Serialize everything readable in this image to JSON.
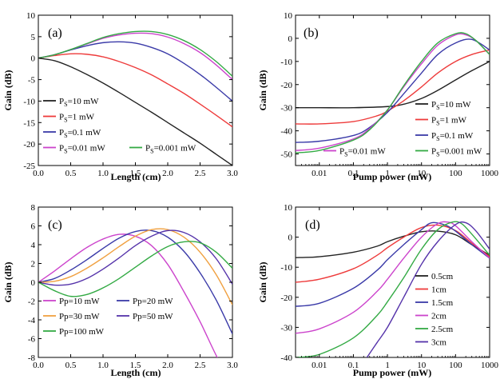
{
  "colors": {
    "black": "#222222",
    "red": "#ee3b3b",
    "blue": "#3a3aa8",
    "magenta": "#cc44cc",
    "green": "#33aa44",
    "orange": "#f0a040",
    "purple": "#5533aa"
  },
  "chart_data": [
    {
      "id": "a",
      "type": "line",
      "tag": "(a)",
      "xlabel": "Length (cm)",
      "ylabel": "Gain (dB)",
      "xscale": "linear",
      "xlim": [
        0,
        3
      ],
      "ylim": [
        -25,
        10
      ],
      "xticks": [
        0,
        0.5,
        1,
        1.5,
        2,
        2.5,
        3
      ],
      "xticklabels": [
        "0.0",
        "0.5",
        "1.0",
        "1.5",
        "2.0",
        "2.5",
        "3.0"
      ],
      "yticks": [
        -25,
        -20,
        -15,
        -10,
        -5,
        0,
        5,
        10
      ],
      "yticklabels": [
        "-25",
        "-20",
        "-15",
        "-10",
        "-5",
        "0",
        "5",
        "10"
      ],
      "legend_placement": "bottom-left",
      "series": [
        {
          "name_main": "P",
          "name_sub": "S",
          "name_rest": "=10 mW",
          "color": "#222222",
          "x": [
            0,
            0.25,
            0.5,
            0.75,
            1,
            1.25,
            1.5,
            1.75,
            2,
            2.25,
            2.5,
            2.75,
            3
          ],
          "y": [
            0,
            -0.6,
            -2,
            -3.8,
            -5.8,
            -8,
            -10.3,
            -12.6,
            -15,
            -17.4,
            -19.8,
            -22.4,
            -25
          ]
        },
        {
          "name_main": "P",
          "name_sub": "S",
          "name_rest": "=1 mW",
          "color": "#ee3b3b",
          "x": [
            0,
            0.25,
            0.5,
            0.75,
            1,
            1.25,
            1.5,
            1.75,
            2,
            2.25,
            2.5,
            2.75,
            3
          ],
          "y": [
            0,
            0.6,
            1,
            0.9,
            0.3,
            -0.8,
            -2.2,
            -3.9,
            -6,
            -8.2,
            -10.7,
            -13.3,
            -16
          ]
        },
        {
          "name_main": "P",
          "name_sub": "S",
          "name_rest": "=0.1 mW",
          "color": "#3a3aa8",
          "x": [
            0,
            0.25,
            0.5,
            0.75,
            1,
            1.25,
            1.5,
            1.75,
            2,
            2.25,
            2.5,
            2.75,
            3
          ],
          "y": [
            0,
            0.8,
            1.9,
            2.9,
            3.6,
            3.8,
            3.5,
            2.5,
            1,
            -1.2,
            -3.8,
            -6.8,
            -10
          ]
        },
        {
          "name_main": "P",
          "name_sub": "S",
          "name_rest": "=0.01 mW",
          "color": "#cc44cc",
          "x": [
            0,
            0.25,
            0.5,
            0.75,
            1,
            1.25,
            1.5,
            1.75,
            2,
            2.25,
            2.5,
            2.75,
            3
          ],
          "y": [
            0,
            0.8,
            2,
            3.3,
            4.6,
            5.4,
            5.8,
            5.7,
            4.9,
            3.4,
            1.3,
            -1.6,
            -5
          ]
        },
        {
          "name_main": "P",
          "name_sub": "S",
          "name_rest": "=0.001 mW",
          "color": "#33aa44",
          "x": [
            0,
            0.25,
            0.5,
            0.75,
            1,
            1.25,
            1.5,
            1.75,
            2,
            2.25,
            2.5,
            2.75,
            3
          ],
          "y": [
            0,
            0.8,
            2,
            3.4,
            4.8,
            5.7,
            6.2,
            6.2,
            5.5,
            4.1,
            2,
            -0.8,
            -4.2
          ]
        }
      ]
    },
    {
      "id": "b",
      "type": "line",
      "tag": "(b)",
      "xlabel": "Pump power (mW)",
      "ylabel": "Gain (dB)",
      "xscale": "log",
      "xlim": [
        0.002,
        1000
      ],
      "ylim": [
        -55,
        10
      ],
      "xticks": [
        0.01,
        0.1,
        1,
        10,
        100,
        1000
      ],
      "xticklabels": [
        "0.01",
        "0.1",
        "1",
        "10",
        "100",
        "1000"
      ],
      "yticks": [
        -50,
        -40,
        -30,
        -20,
        -10,
        0,
        10
      ],
      "yticklabels": [
        "-50",
        "-40",
        "-30",
        "-20",
        "-10",
        "0",
        "10"
      ],
      "legend_placement": "bottom-right",
      "series": [
        {
          "name_main": "P",
          "name_sub": "S",
          "name_rest": "=10 mW",
          "color": "#222222",
          "x": [
            0.002,
            0.01,
            0.1,
            1,
            3,
            10,
            30,
            100,
            300,
            1000
          ],
          "y": [
            -30,
            -30,
            -30,
            -29.5,
            -28.5,
            -26,
            -22.5,
            -18,
            -14,
            -10
          ]
        },
        {
          "name_main": "P",
          "name_sub": "S",
          "name_rest": "=1 mW",
          "color": "#ee3b3b",
          "x": [
            0.002,
            0.01,
            0.1,
            0.5,
            1,
            3,
            10,
            30,
            100,
            300,
            1000
          ],
          "y": [
            -37,
            -37,
            -36,
            -33.5,
            -31.5,
            -27,
            -21,
            -15,
            -10,
            -7,
            -5
          ]
        },
        {
          "name_main": "P",
          "name_sub": "S",
          "name_rest": "=0.1 mW",
          "color": "#3a3aa8",
          "x": [
            0.002,
            0.01,
            0.1,
            0.3,
            1,
            3,
            10,
            30,
            100,
            300,
            1000
          ],
          "y": [
            -45,
            -44.5,
            -42,
            -38.5,
            -32,
            -24,
            -15,
            -7,
            -2,
            -0.5,
            -5
          ]
        },
        {
          "name_main": "P",
          "name_sub": "S",
          "name_rest": "=0.01 mW",
          "color": "#cc44cc",
          "x": [
            0.002,
            0.01,
            0.1,
            0.3,
            1,
            3,
            10,
            30,
            100,
            200,
            400,
            1000
          ],
          "y": [
            -48.5,
            -47.5,
            -43.5,
            -39,
            -31,
            -21,
            -11,
            -3,
            1.5,
            1.5,
            -1,
            -7
          ]
        },
        {
          "name_main": "P",
          "name_sub": "S",
          "name_rest": "=0.001 mW",
          "color": "#33aa44",
          "x": [
            0.002,
            0.01,
            0.1,
            0.3,
            1,
            3,
            10,
            30,
            100,
            200,
            400,
            1000
          ],
          "y": [
            -49.5,
            -48.5,
            -44,
            -39.5,
            -31,
            -20.5,
            -10,
            -2,
            2,
            2,
            -1,
            -7
          ]
        }
      ]
    },
    {
      "id": "c",
      "type": "line",
      "tag": "(c)",
      "xlabel": "Length (cm)",
      "ylabel": "Gain (dB)",
      "xscale": "linear",
      "xlim": [
        0,
        3
      ],
      "ylim": [
        -8,
        8
      ],
      "xticks": [
        0,
        0.5,
        1,
        1.5,
        2,
        2.5,
        3
      ],
      "xticklabels": [
        "0.0",
        "0.5",
        "1.0",
        "1.5",
        "2.0",
        "2.5",
        "3.0"
      ],
      "yticks": [
        -8,
        -6,
        -4,
        -2,
        0,
        2,
        4,
        6,
        8
      ],
      "yticklabels": [
        "-8",
        "-6",
        "-4",
        "-2",
        "0",
        "2",
        "4",
        "6",
        "8"
      ],
      "legend_placement": "bottom-left",
      "series": [
        {
          "name": "Pp=10 mW",
          "color": "#cc44cc",
          "x": [
            0,
            0.25,
            0.5,
            0.75,
            1,
            1.25,
            1.5,
            1.75,
            2,
            2.25,
            2.5,
            2.75,
            3
          ],
          "y": [
            0,
            1.2,
            2.5,
            3.7,
            4.6,
            5.1,
            4.9,
            3.9,
            1.9,
            -1,
            -4.2,
            -7.8,
            -11
          ]
        },
        {
          "name": "Pp=20 mW",
          "color": "#3a3aa8",
          "x": [
            0,
            0.25,
            0.5,
            0.75,
            1,
            1.25,
            1.5,
            1.75,
            2,
            2.25,
            2.5,
            2.75,
            3
          ],
          "y": [
            0,
            0.4,
            1.3,
            2.4,
            3.6,
            4.7,
            5.4,
            5.5,
            4.8,
            3.3,
            1,
            -1.9,
            -5.5
          ]
        },
        {
          "name": "Pp=30 mW",
          "color": "#f0a040",
          "x": [
            0,
            0.25,
            0.5,
            0.75,
            1,
            1.25,
            1.5,
            1.75,
            2,
            2.25,
            2.5,
            2.75,
            3
          ],
          "y": [
            0,
            0.1,
            0.6,
            1.5,
            2.6,
            3.8,
            4.9,
            5.6,
            5.6,
            4.8,
            3.2,
            0.8,
            -2.4
          ]
        },
        {
          "name": "Pp=50 mW",
          "color": "#5533aa",
          "x": [
            0,
            0.25,
            0.5,
            0.75,
            1,
            1.25,
            1.5,
            1.75,
            2,
            2.25,
            2.5,
            2.75,
            3
          ],
          "y": [
            0,
            -0.3,
            -0.2,
            0.4,
            1.4,
            2.6,
            3.9,
            4.9,
            5.5,
            5.3,
            4.3,
            2.5,
            -0.2
          ]
        },
        {
          "name": "Pp=100 mW",
          "color": "#33aa44",
          "x": [
            0,
            0.25,
            0.5,
            0.75,
            1,
            1.25,
            1.5,
            1.75,
            2,
            2.25,
            2.5,
            2.75,
            3
          ],
          "y": [
            0,
            -0.9,
            -1.5,
            -1.3,
            -0.6,
            0.4,
            1.6,
            2.8,
            3.8,
            4.3,
            4.2,
            3.2,
            1.5
          ]
        }
      ]
    },
    {
      "id": "d",
      "type": "line",
      "tag": "(d)",
      "xlabel": "Pump power (mW)",
      "ylabel": "Gain (dB)",
      "xscale": "log",
      "xlim": [
        0.002,
        1000
      ],
      "ylim": [
        -40,
        10
      ],
      "xticks": [
        0.01,
        0.1,
        1,
        10,
        100,
        1000
      ],
      "xticklabels": [
        "0.01",
        "0.1",
        "1",
        "10",
        "100",
        "1000"
      ],
      "yticks": [
        -40,
        -30,
        -20,
        -10,
        0,
        10
      ],
      "yticklabels": [
        "-40",
        "-30",
        "-20",
        "-10",
        "0",
        "10"
      ],
      "legend_placement": "right",
      "series": [
        {
          "name": "0.5cm",
          "color": "#222222",
          "x": [
            0.002,
            0.01,
            0.1,
            0.5,
            1,
            3,
            10,
            30,
            100,
            300,
            1000
          ],
          "y": [
            -6.8,
            -6.5,
            -5,
            -3,
            -1.5,
            0.3,
            1.8,
            2,
            0.8,
            -2.5,
            -6
          ]
        },
        {
          "name": "1cm",
          "color": "#ee3b3b",
          "x": [
            0.002,
            0.01,
            0.1,
            0.5,
            1,
            3,
            10,
            30,
            100,
            300,
            1000
          ],
          "y": [
            -15,
            -14,
            -10.5,
            -6,
            -3.5,
            0,
            3.2,
            4,
            2.2,
            -2,
            -6.5
          ]
        },
        {
          "name": "1.5cm",
          "color": "#3a3aa8",
          "x": [
            0.002,
            0.01,
            0.1,
            0.5,
            1,
            3,
            10,
            20,
            50,
            100,
            300,
            1000
          ],
          "y": [
            -23,
            -22,
            -17,
            -11,
            -7.5,
            -2.5,
            2.5,
            4.8,
            4,
            2,
            -2.5,
            -7
          ]
        },
        {
          "name": "2cm",
          "color": "#cc44cc",
          "x": [
            0.002,
            0.01,
            0.1,
            0.5,
            1,
            3,
            10,
            30,
            60,
            100,
            300,
            1000
          ],
          "y": [
            -32,
            -30.5,
            -25,
            -18,
            -14,
            -7,
            0,
            4.5,
            5,
            3.8,
            -1.5,
            -7
          ]
        },
        {
          "name": "2.5cm",
          "color": "#33aa44",
          "x": [
            0.002,
            0.01,
            0.1,
            0.5,
            1,
            3,
            10,
            30,
            80,
            150,
            300,
            1000
          ],
          "y": [
            -40,
            -39,
            -33.5,
            -26,
            -21.5,
            -13.5,
            -4,
            2.5,
            5,
            4.5,
            1,
            -6
          ]
        },
        {
          "name": "3cm",
          "color": "#5533aa",
          "x": [
            0.25,
            0.5,
            1,
            3,
            10,
            30,
            100,
            200,
            400,
            1000
          ],
          "y": [
            -40,
            -35,
            -30,
            -20,
            -9,
            -1.5,
            4.2,
            4.8,
            2,
            -4
          ]
        }
      ]
    }
  ]
}
